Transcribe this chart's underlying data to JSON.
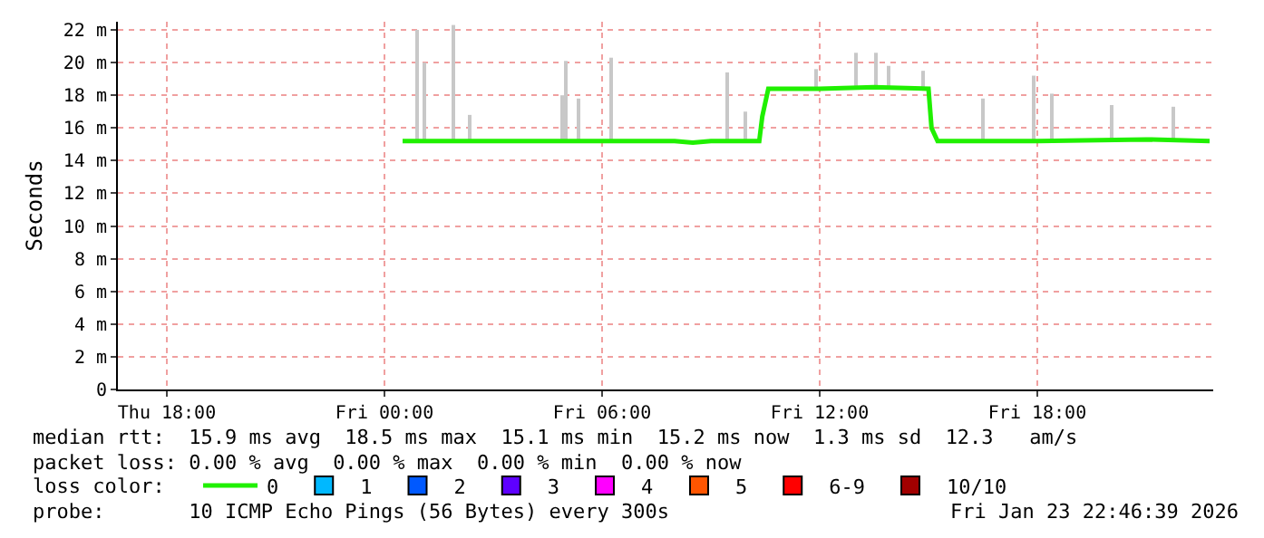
{
  "chart_data": {
    "type": "line",
    "ylabel": "Seconds",
    "xlim": [
      "2026-01-22T16:39",
      "2026-01-23T22:51"
    ],
    "xticks": [
      {
        "value": "2026-01-22T18:00",
        "label": "Thu 18:00"
      },
      {
        "value": "2026-01-23T00:00",
        "label": "Fri 00:00"
      },
      {
        "value": "2026-01-23T06:00",
        "label": "Fri 06:00"
      },
      {
        "value": "2026-01-23T12:00",
        "label": "Fri 12:00"
      },
      {
        "value": "2026-01-23T18:00",
        "label": "Fri 18:00"
      }
    ],
    "ylim": [
      0,
      22.5
    ],
    "yticks": [
      0,
      {
        "value": 2,
        "label": "2 m"
      },
      {
        "value": 4,
        "label": "4 m"
      },
      {
        "value": 6,
        "label": "6 m"
      },
      {
        "value": 8,
        "label": "8 m"
      },
      {
        "value": 10,
        "label": "10 m"
      },
      {
        "value": 12,
        "label": "12 m"
      },
      {
        "value": 14,
        "label": "14 m"
      },
      {
        "value": 16,
        "label": "16 m"
      },
      {
        "value": 18,
        "label": "18 m"
      },
      {
        "value": 20,
        "label": "20 m"
      },
      {
        "value": 22,
        "label": "22 m"
      }
    ],
    "grid": true,
    "legend": "bottom",
    "series": [
      {
        "type": "bar",
        "color": "#c8c8c8",
        "x": [
          "2026-01-23T00:54",
          "2026-01-23T01:06",
          "2026-01-23T01:54",
          "2026-01-23T02:21",
          "2026-01-23T04:54",
          "2026-01-23T05:00",
          "2026-01-23T05:21",
          "2026-01-23T06:15",
          "2026-01-23T09:27",
          "2026-01-23T09:57",
          "2026-01-23T11:54",
          "2026-01-23T13:00",
          "2026-01-23T13:33",
          "2026-01-23T13:54",
          "2026-01-23T14:51",
          "2026-01-23T16:30",
          "2026-01-23T17:54",
          "2026-01-23T18:24",
          "2026-01-23T20:03",
          "2026-01-23T21:45"
        ],
        "base": [
          15.2,
          15.2,
          15.2,
          15.2,
          15.2,
          15.2,
          15.2,
          15.2,
          15.2,
          15.2,
          18.4,
          18.4,
          18.4,
          18.4,
          18.4,
          15.2,
          15.2,
          15.2,
          15.2,
          15.2
        ],
        "values": [
          6.8,
          4.8,
          7.1,
          1.6,
          2.8,
          4.9,
          2.6,
          5.1,
          4.2,
          1.8,
          1.2,
          2.2,
          2.2,
          1.4,
          1.1,
          2.6,
          4.0,
          2.9,
          2.2,
          2.1
        ]
      },
      {
        "name": "0",
        "color": "#20f000",
        "x": [
          "2026-01-23T00:30",
          "2026-01-23T05:00",
          "2026-01-23T08:00",
          "2026-01-23T08:30",
          "2026-01-23T09:00",
          "2026-01-23T10:20",
          "2026-01-23T10:25",
          "2026-01-23T10:35",
          "2026-01-23T12:00",
          "2026-01-23T13:30",
          "2026-01-23T15:00",
          "2026-01-23T15:05",
          "2026-01-23T15:15",
          "2026-01-23T18:00",
          "2026-01-23T21:00",
          "2026-01-23T22:45"
        ],
        "values": [
          15.2,
          15.2,
          15.2,
          15.1,
          15.2,
          15.2,
          16.7,
          18.4,
          18.4,
          18.5,
          18.4,
          16.0,
          15.2,
          15.2,
          15.3,
          15.2
        ]
      },
      {
        "type": "scatter",
        "name": "1",
        "color": "#00b8ff",
        "values": [
          null
        ]
      },
      {
        "type": "scatter",
        "name": "2",
        "color": "#0059ff",
        "values": [
          null
        ]
      },
      {
        "type": "scatter",
        "name": "3",
        "color": "#5e00ff",
        "values": [
          null
        ]
      },
      {
        "type": "scatter",
        "name": "4",
        "color": "#ff00ff",
        "values": [
          null
        ]
      },
      {
        "type": "scatter",
        "name": "5",
        "color": "#ff5500",
        "values": [
          null
        ]
      },
      {
        "type": "scatter",
        "name": "6-9",
        "color": "#ff0000",
        "values": [
          null
        ]
      },
      {
        "type": "scatter",
        "name": "10/10",
        "color": "#a10000",
        "values": [
          null
        ]
      }
    ],
    "annotations": [
      "median rtt:  15.9 ms avg  18.5 ms max  15.1 ms min  15.2 ms now  1.3 ms sd  12.3   am/s",
      "packet loss: 0.00 % avg  0.00 % max  0.00 % min  0.00 % now",
      "loss color:",
      "probe:       10 ICMP Echo Pings (56 Bytes) every 300s",
      "Fri Jan 23 22:46:39 2026"
    ]
  }
}
